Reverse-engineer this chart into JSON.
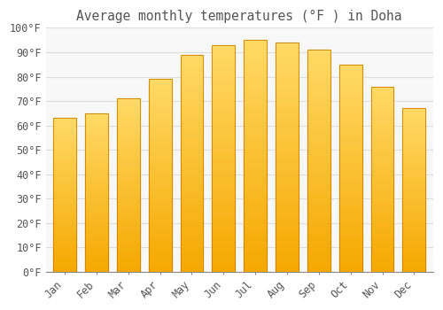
{
  "title": "Average monthly temperatures (°F ) in Doha",
  "months": [
    "Jan",
    "Feb",
    "Mar",
    "Apr",
    "May",
    "Jun",
    "Jul",
    "Aug",
    "Sep",
    "Oct",
    "Nov",
    "Dec"
  ],
  "values": [
    63,
    65,
    71,
    79,
    89,
    93,
    95,
    94,
    91,
    85,
    76,
    67
  ],
  "bar_color_bottom": "#F5A800",
  "bar_color_top": "#FFD966",
  "bar_edge_color": "#C88000",
  "background_color": "#FFFFFF",
  "plot_bg_color": "#F8F8F8",
  "grid_color": "#DDDDDD",
  "text_color": "#555555",
  "ylim": [
    0,
    100
  ],
  "yticks": [
    0,
    10,
    20,
    30,
    40,
    50,
    60,
    70,
    80,
    90,
    100
  ],
  "ytick_labels": [
    "0°F",
    "10°F",
    "20°F",
    "30°F",
    "40°F",
    "50°F",
    "60°F",
    "70°F",
    "80°F",
    "90°F",
    "100°F"
  ],
  "title_fontsize": 10.5,
  "tick_fontsize": 8.5,
  "figsize": [
    5.0,
    3.5
  ],
  "dpi": 100
}
